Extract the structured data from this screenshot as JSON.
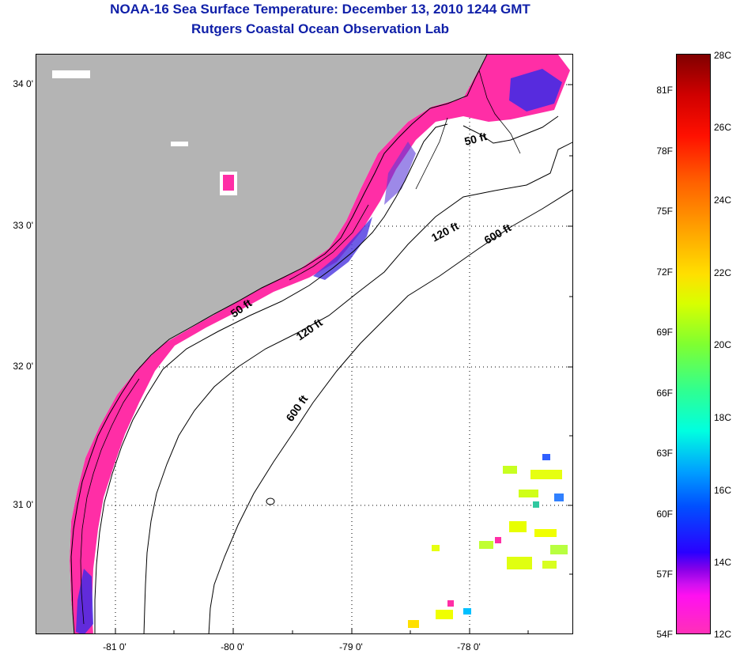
{
  "title": {
    "line1": "NOAA-16 Sea Surface Temperature:  December 13, 2010 1244 GMT",
    "line2": "Rutgers Coastal Ocean Observation Lab"
  },
  "map": {
    "latitude_labels": [
      "34 0'",
      "33 0'",
      "32 0'",
      "31 0'"
    ],
    "longitude_labels": [
      "-81 0'",
      "-80 0'",
      "-79 0'",
      "-78 0'"
    ],
    "contour_labels": [
      "50 ft",
      "50 ft",
      "120 ft",
      "120 ft",
      "600 ft",
      "600 ft"
    ],
    "colors": {
      "land": "#b4b4b4",
      "cold_water": "#ff2ea6",
      "ocean": "#ffffff",
      "contour": "#000000"
    }
  },
  "colorbar": {
    "celsius_labels": [
      "28C",
      "26C",
      "24C",
      "22C",
      "20C",
      "18C",
      "16C",
      "14C",
      "12C"
    ],
    "fahrenheit_labels": [
      "81F",
      "78F",
      "75F",
      "72F",
      "69F",
      "66F",
      "63F",
      "60F",
      "57F",
      "54F"
    ]
  }
}
